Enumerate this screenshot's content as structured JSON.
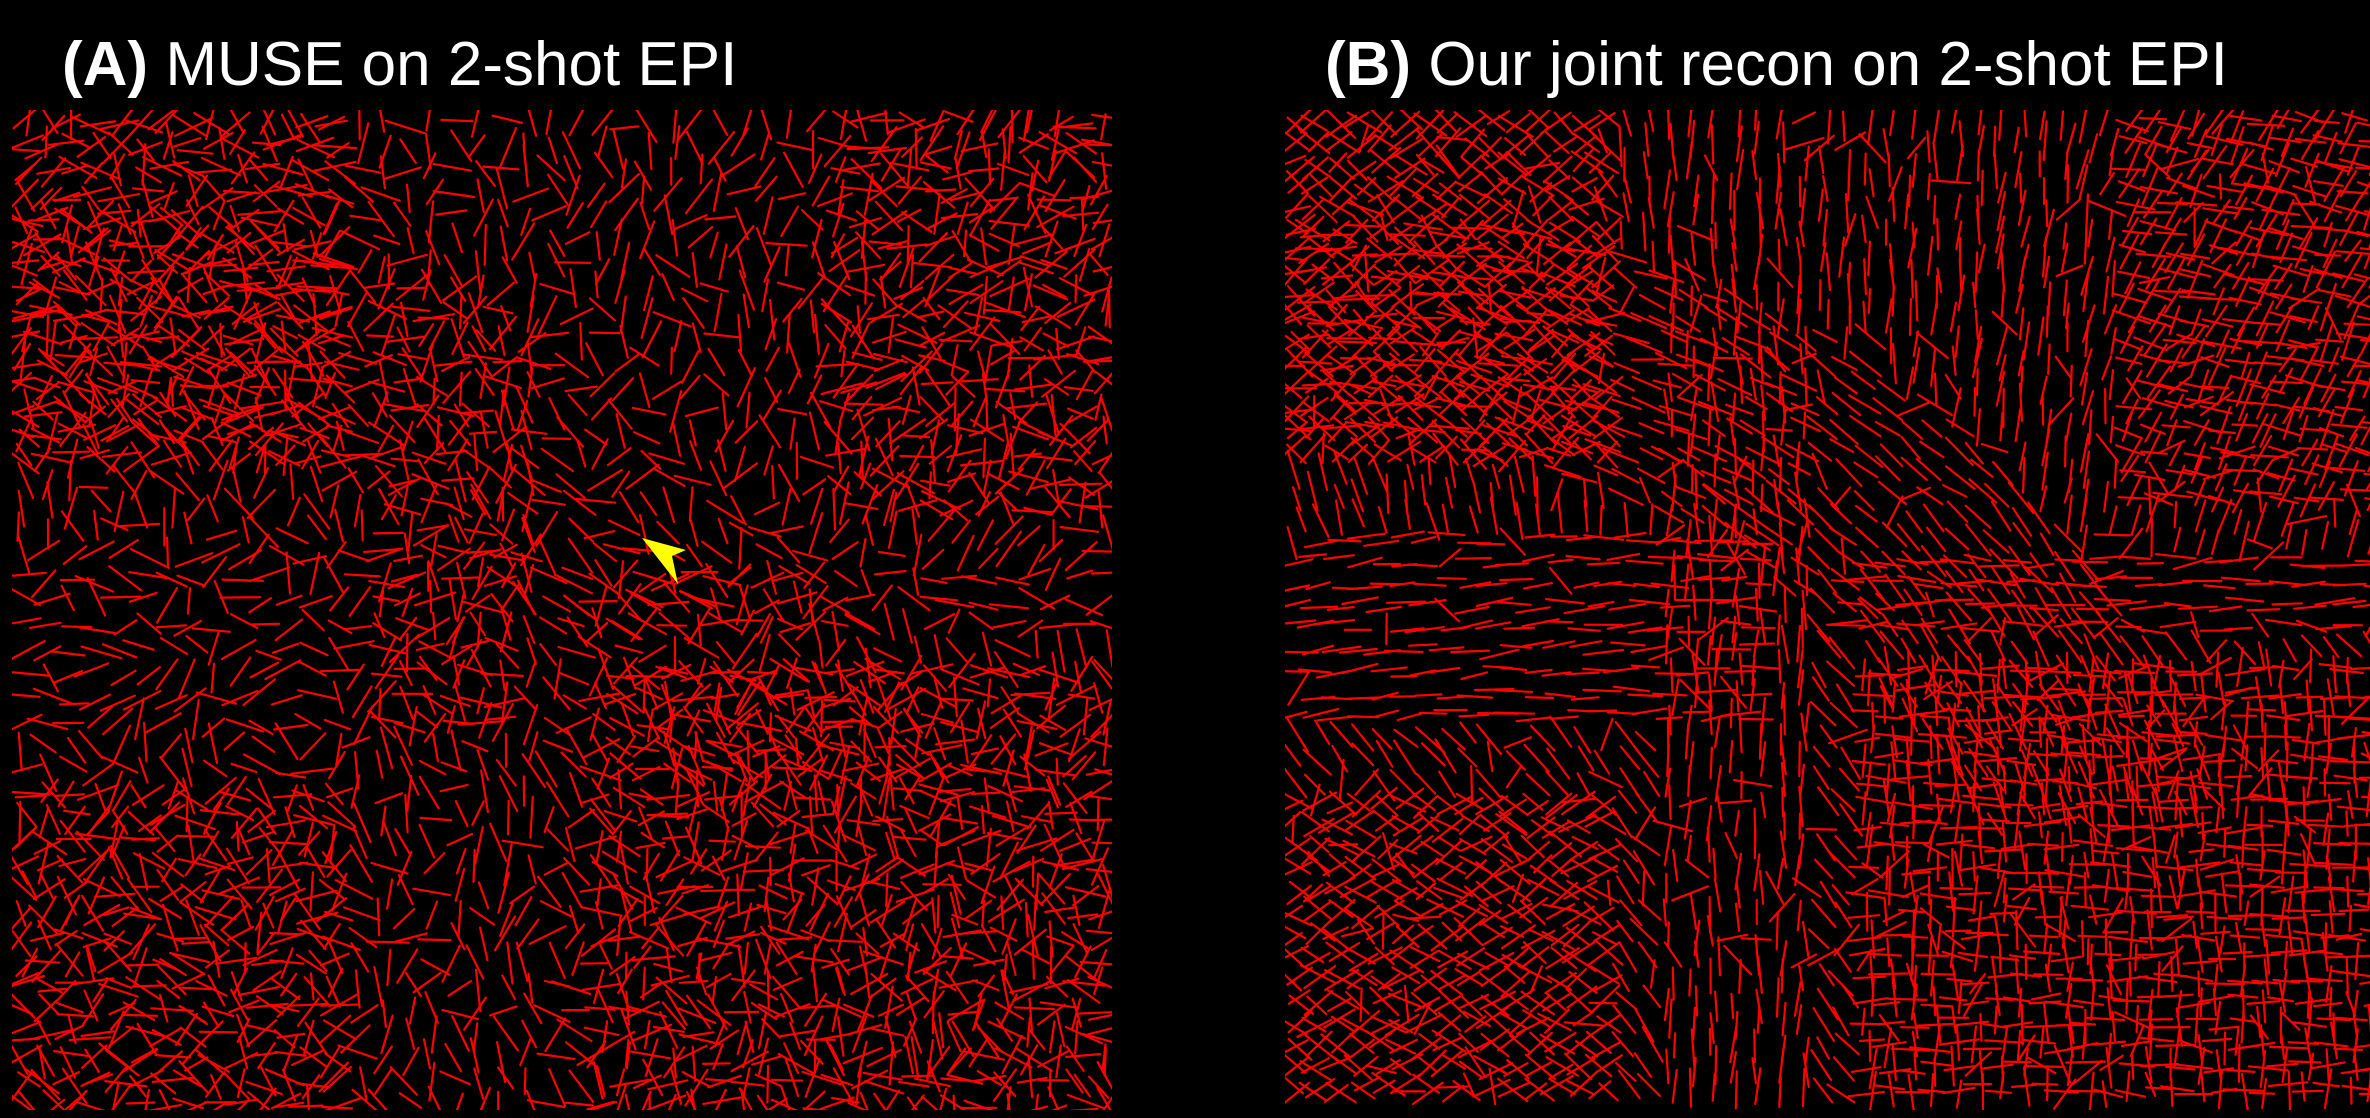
{
  "figure": {
    "background_color": "#000000",
    "glyph_color": "#ff0000",
    "arrowhead_color": "#ffff00",
    "panels": [
      {
        "id": "A",
        "letter": "(A)",
        "caption": "MUSE on 2-shot EPI"
      },
      {
        "id": "B",
        "letter": "(B)",
        "caption": "Our joint recon on 2-shot EPI"
      }
    ]
  }
}
